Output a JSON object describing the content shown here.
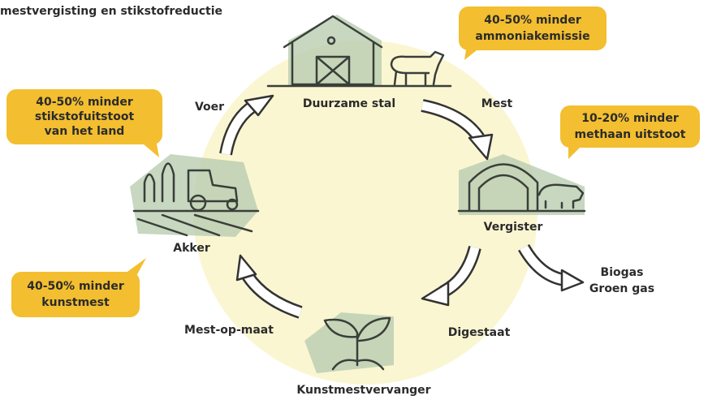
{
  "subtitle": "mestvergisting en stikstofreductie",
  "nodes": [
    {
      "label": "Duurzame stal"
    },
    {
      "label": "Vergister"
    },
    {
      "label": "Kunstmestvervanger"
    },
    {
      "label": "Akker"
    }
  ],
  "edges": [
    {
      "label": "Mest"
    },
    {
      "label": "Digestaat"
    },
    {
      "label": "Mest-op-maat"
    },
    {
      "label": "Voer"
    }
  ],
  "output": {
    "lines": [
      "Biogas",
      "Groen gas"
    ]
  },
  "callouts": [
    {
      "lines": [
        "40-50% minder",
        "ammoniakemissie"
      ]
    },
    {
      "lines": [
        "10-20% minder",
        "methaan uitstoot"
      ]
    },
    {
      "lines": [
        "40-50% minder",
        "stikstofuitstoot",
        "van het land"
      ]
    },
    {
      "lines": [
        "40-50% minder",
        "kunstmest"
      ]
    }
  ]
}
